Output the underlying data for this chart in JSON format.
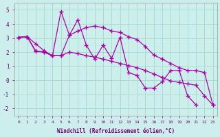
{
  "xlabel": "Windchill (Refroidissement éolien,°C)",
  "background_color": "#cceeed",
  "grid_color": "#aaddcc",
  "line_color": "#aa00aa",
  "x": [
    0,
    1,
    2,
    3,
    4,
    5,
    6,
    7,
    8,
    9,
    10,
    11,
    12,
    13,
    14,
    15,
    16,
    17,
    18,
    19,
    20,
    21,
    22,
    23
  ],
  "series1": [
    3.05,
    3.1,
    2.6,
    2.1,
    1.75,
    4.9,
    3.2,
    4.3,
    2.5,
    1.5,
    2.5,
    1.55,
    3.05,
    0.55,
    0.35,
    -0.55,
    -0.55,
    -0.1,
    0.7,
    0.7,
    -1.1,
    -1.75,
    null,
    null
  ],
  "series2": [
    3.05,
    3.1,
    2.1,
    2.0,
    1.75,
    1.75,
    3.2,
    3.5,
    3.75,
    3.85,
    3.75,
    3.5,
    3.4,
    3.1,
    2.9,
    2.4,
    1.8,
    1.5,
    1.2,
    0.9,
    0.7,
    0.7,
    0.55,
    -1.75
  ],
  "series3": [
    3.05,
    3.1,
    2.05,
    2.0,
    1.75,
    1.75,
    2.0,
    1.9,
    1.75,
    1.65,
    1.5,
    1.35,
    1.2,
    1.05,
    0.9,
    0.7,
    0.45,
    0.2,
    -0.05,
    -0.15,
    -0.25,
    -0.35,
    -1.1,
    -1.75
  ],
  "ylim": [
    -2.5,
    5.5
  ],
  "xlim": [
    -0.5,
    23.5
  ],
  "yticks": [
    -2,
    -1,
    0,
    1,
    2,
    3,
    4,
    5
  ],
  "xticks": [
    0,
    1,
    2,
    3,
    4,
    5,
    6,
    7,
    8,
    9,
    10,
    11,
    12,
    13,
    14,
    15,
    16,
    17,
    18,
    19,
    20,
    21,
    22,
    23
  ]
}
